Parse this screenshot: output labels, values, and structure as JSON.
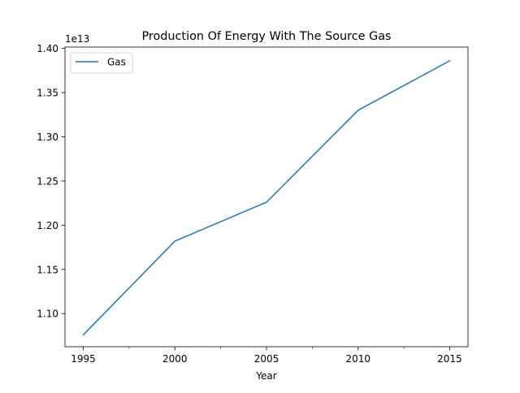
{
  "chart_data": {
    "type": "line",
    "title": "Production Of Energy With The Source Gas",
    "xlabel": "Year",
    "ylabel": "",
    "offset_text": "1e13",
    "scale_factor": 10000000000000.0,
    "x": [
      1995,
      2000,
      2005,
      2010,
      2015
    ],
    "series": [
      {
        "name": "Gas",
        "color": "#1f77b4",
        "values": [
          10760000000000.0,
          11820000000000.0,
          12260000000000.0,
          13300000000000.0,
          13860000000000.0
        ]
      }
    ],
    "xlim": [
      1994,
      2016
    ],
    "ylim": [
      10625000000000.0,
      14015000000000.0
    ],
    "x_ticks_major": [
      1995,
      2000,
      2005,
      2010,
      2015
    ],
    "x_tick_labels": [
      "1995",
      "2000",
      "2005",
      "2010",
      "2015"
    ],
    "x_ticks_minor": [
      1997.5,
      2002.5,
      2007.5,
      2012.5
    ],
    "y_ticks": [
      11000000000000.0,
      11500000000000.0,
      12000000000000.0,
      12500000000000.0,
      13000000000000.0,
      13500000000000.0,
      14000000000000.0
    ],
    "y_tick_labels": [
      "1.10",
      "1.15",
      "1.20",
      "1.25",
      "1.30",
      "1.35",
      "1.40"
    ],
    "grid": false,
    "legend_position": "top-left"
  }
}
